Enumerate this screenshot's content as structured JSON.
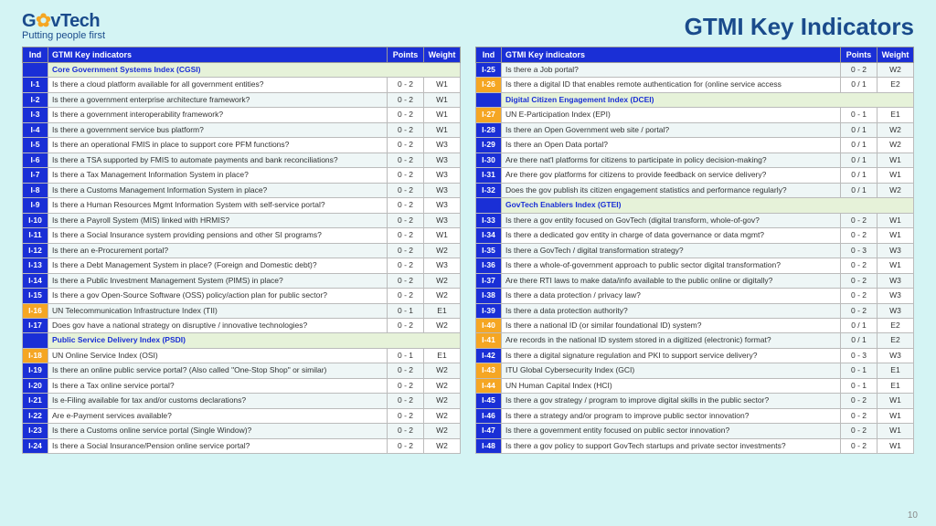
{
  "logo": {
    "brand_pre": "G",
    "brand_gear": "✿",
    "brand_post": "vTech",
    "tagline": "Putting people first"
  },
  "title": "GTMI Key Indicators",
  "page_number": "10",
  "headers": {
    "ind": "Ind",
    "key": "GTMI Key indicators",
    "points": "Points",
    "weight": "Weight"
  },
  "colors": {
    "header_bg": "#1a2fd6",
    "highlight_bg": "#f5a623",
    "section_bg": "#e6f2d9",
    "page_bg": "#d4f4f4",
    "title_color": "#1a4b8c"
  },
  "left_rows": [
    {
      "type": "section",
      "label": "Core Government Systems Index (CGSI)"
    },
    {
      "id": "I-1",
      "txt": "Is there a cloud platform available for all government entities?",
      "pt": "0 - 2",
      "wt": "W1"
    },
    {
      "id": "I-2",
      "txt": "Is there a government enterprise architecture framework?",
      "pt": "0 - 2",
      "wt": "W1",
      "alt": true
    },
    {
      "id": "I-3",
      "txt": "Is there a government interoperability framework?",
      "pt": "0 - 2",
      "wt": "W1"
    },
    {
      "id": "I-4",
      "txt": "Is there a government service bus platform?",
      "pt": "0 - 2",
      "wt": "W1",
      "alt": true
    },
    {
      "id": "I-5",
      "txt": "Is there an operational FMIS in place to support core PFM functions?",
      "pt": "0 - 2",
      "wt": "W3"
    },
    {
      "id": "I-6",
      "txt": "Is there a TSA supported by FMIS to automate payments and bank reconciliations?",
      "pt": "0 - 2",
      "wt": "W3",
      "alt": true
    },
    {
      "id": "I-7",
      "txt": "Is there a Tax Management Information System in place?",
      "pt": "0 - 2",
      "wt": "W3"
    },
    {
      "id": "I-8",
      "txt": "Is there a Customs Management Information System in place?",
      "pt": "0 - 2",
      "wt": "W3",
      "alt": true
    },
    {
      "id": "I-9",
      "txt": "Is there a Human Resources Mgmt Information System with self-service portal?",
      "pt": "0 - 2",
      "wt": "W3"
    },
    {
      "id": "I-10",
      "txt": "Is there a Payroll System (MIS) linked with HRMIS?",
      "pt": "0 - 2",
      "wt": "W3",
      "alt": true
    },
    {
      "id": "I-11",
      "txt": "Is there a Social Insurance system providing pensions and other SI programs?",
      "pt": "0 - 2",
      "wt": "W1"
    },
    {
      "id": "I-12",
      "txt": "Is there an e-Procurement portal?",
      "pt": "0 - 2",
      "wt": "W2",
      "alt": true
    },
    {
      "id": "I-13",
      "txt": "Is there a Debt Management System in place? (Foreign and Domestic debt)?",
      "pt": "0 - 2",
      "wt": "W3"
    },
    {
      "id": "I-14",
      "txt": "Is there a Public Investment Management System (PIMS) in place?",
      "pt": "0 - 2",
      "wt": "W2",
      "alt": true
    },
    {
      "id": "I-15",
      "txt": "Is there a gov Open-Source Software (OSS) policy/action plan for public sector?",
      "pt": "0 - 2",
      "wt": "W2"
    },
    {
      "id": "I-16",
      "txt": "UN Telecommunication Infrastructure Index (TII)",
      "pt": "0 - 1",
      "wt": "E1",
      "hl": true,
      "alt": true
    },
    {
      "id": "I-17",
      "txt": "Does gov have a national strategy on disruptive / innovative technologies?",
      "pt": "0 - 2",
      "wt": "W2"
    },
    {
      "type": "section",
      "label": "Public Service Delivery Index (PSDI)"
    },
    {
      "id": "I-18",
      "txt": "UN Online Service Index (OSI)",
      "pt": "0 - 1",
      "wt": "E1",
      "hl": true
    },
    {
      "id": "I-19",
      "txt": "Is there an online public service portal? (Also called \"One-Stop Shop\" or similar)",
      "pt": "0 - 2",
      "wt": "W2",
      "alt": true
    },
    {
      "id": "I-20",
      "txt": "Is there a Tax online service portal?",
      "pt": "0 - 2",
      "wt": "W2"
    },
    {
      "id": "I-21",
      "txt": "Is e-Filing available for tax and/or customs declarations?",
      "pt": "0 - 2",
      "wt": "W2",
      "alt": true
    },
    {
      "id": "I-22",
      "txt": "Are e-Payment services available?",
      "pt": "0 - 2",
      "wt": "W2"
    },
    {
      "id": "I-23",
      "txt": "Is there a Customs online service portal (Single Window)?",
      "pt": "0 - 2",
      "wt": "W2",
      "alt": true
    },
    {
      "id": "I-24",
      "txt": "Is there a Social Insurance/Pension online service portal?",
      "pt": "0 - 2",
      "wt": "W2"
    }
  ],
  "right_rows": [
    {
      "id": "I-25",
      "txt": "Is there a Job portal?",
      "pt": "0 - 2",
      "wt": "W2",
      "alt": true
    },
    {
      "id": "I-26",
      "txt": "Is there a digital ID that enables remote authentication for (online service access",
      "pt": "0 / 1",
      "wt": "E2",
      "hl": true
    },
    {
      "type": "section",
      "label": "Digital Citizen Engagement Index (DCEI)"
    },
    {
      "id": "I-27",
      "txt": "UN E-Participation Index (EPI)",
      "pt": "0 - 1",
      "wt": "E1",
      "hl": true
    },
    {
      "id": "I-28",
      "txt": "Is there an Open Government web site / portal?",
      "pt": "0 / 1",
      "wt": "W2",
      "alt": true
    },
    {
      "id": "I-29",
      "txt": "Is there an Open Data portal?",
      "pt": "0 / 1",
      "wt": "W2"
    },
    {
      "id": "I-30",
      "txt": "Are there nat'l platforms for citizens to participate in policy decision-making?",
      "pt": "0 / 1",
      "wt": "W1",
      "alt": true
    },
    {
      "id": "I-31",
      "txt": "Are there gov platforms for citizens to provide feedback on service delivery?",
      "pt": "0 / 1",
      "wt": "W1"
    },
    {
      "id": "I-32",
      "txt": "Does the gov publish its citizen engagement statistics and performance regularly?",
      "pt": "0 / 1",
      "wt": "W2",
      "alt": true
    },
    {
      "type": "section",
      "label": "GovTech Enablers Index (GTEI)"
    },
    {
      "id": "I-33",
      "txt": "Is there a gov entity focused on GovTech (digital transform, whole-of-gov?",
      "pt": "0 - 2",
      "wt": "W1",
      "alt": true
    },
    {
      "id": "I-34",
      "txt": "Is there a dedicated gov entity in charge of data governance or data mgmt?",
      "pt": "0 - 2",
      "wt": "W1"
    },
    {
      "id": "I-35",
      "txt": "Is there a GovTech / digital transformation strategy?",
      "pt": "0 - 3",
      "wt": "W3",
      "alt": true
    },
    {
      "id": "I-36",
      "txt": "Is there a whole-of-government approach to public sector digital transformation?",
      "pt": "0 - 2",
      "wt": "W1"
    },
    {
      "id": "I-37",
      "txt": "Are there RTI laws to make data/info available to the public online or digitally?",
      "pt": "0 - 2",
      "wt": "W3",
      "alt": true
    },
    {
      "id": "I-38",
      "txt": "Is there a data protection / privacy law?",
      "pt": "0 - 2",
      "wt": "W3"
    },
    {
      "id": "I-39",
      "txt": "Is there a data protection authority?",
      "pt": "0 - 2",
      "wt": "W3",
      "alt": true
    },
    {
      "id": "I-40",
      "txt": "Is there a national ID (or similar foundational ID) system?",
      "pt": "0 / 1",
      "wt": "E2",
      "hl": true
    },
    {
      "id": "I-41",
      "txt": "Are records in the national ID system stored in a digitized (electronic) format?",
      "pt": "0 / 1",
      "wt": "E2",
      "hl": true,
      "alt": true
    },
    {
      "id": "I-42",
      "txt": "Is there a digital signature regulation and PKI to support service delivery?",
      "pt": "0 - 3",
      "wt": "W3"
    },
    {
      "id": "I-43",
      "txt": "ITU Global Cybersecurity Index (GCI)",
      "pt": "0 - 1",
      "wt": "E1",
      "hl": true,
      "alt": true
    },
    {
      "id": "I-44",
      "txt": "UN Human Capital Index (HCI)",
      "pt": "0 - 1",
      "wt": "E1",
      "hl": true
    },
    {
      "id": "I-45",
      "txt": "Is there a gov strategy / program to improve digital skills in the public sector?",
      "pt": "0 - 2",
      "wt": "W1",
      "alt": true
    },
    {
      "id": "I-46",
      "txt": "Is there a strategy and/or program to improve public sector innovation?",
      "pt": "0 - 2",
      "wt": "W1"
    },
    {
      "id": "I-47",
      "txt": "Is there a government entity focused on public sector innovation?",
      "pt": "0 - 2",
      "wt": "W1",
      "alt": true
    },
    {
      "id": "I-48",
      "txt": "Is there a gov policy to support GovTech startups and private sector investments?",
      "pt": "0 - 2",
      "wt": "W1"
    }
  ]
}
